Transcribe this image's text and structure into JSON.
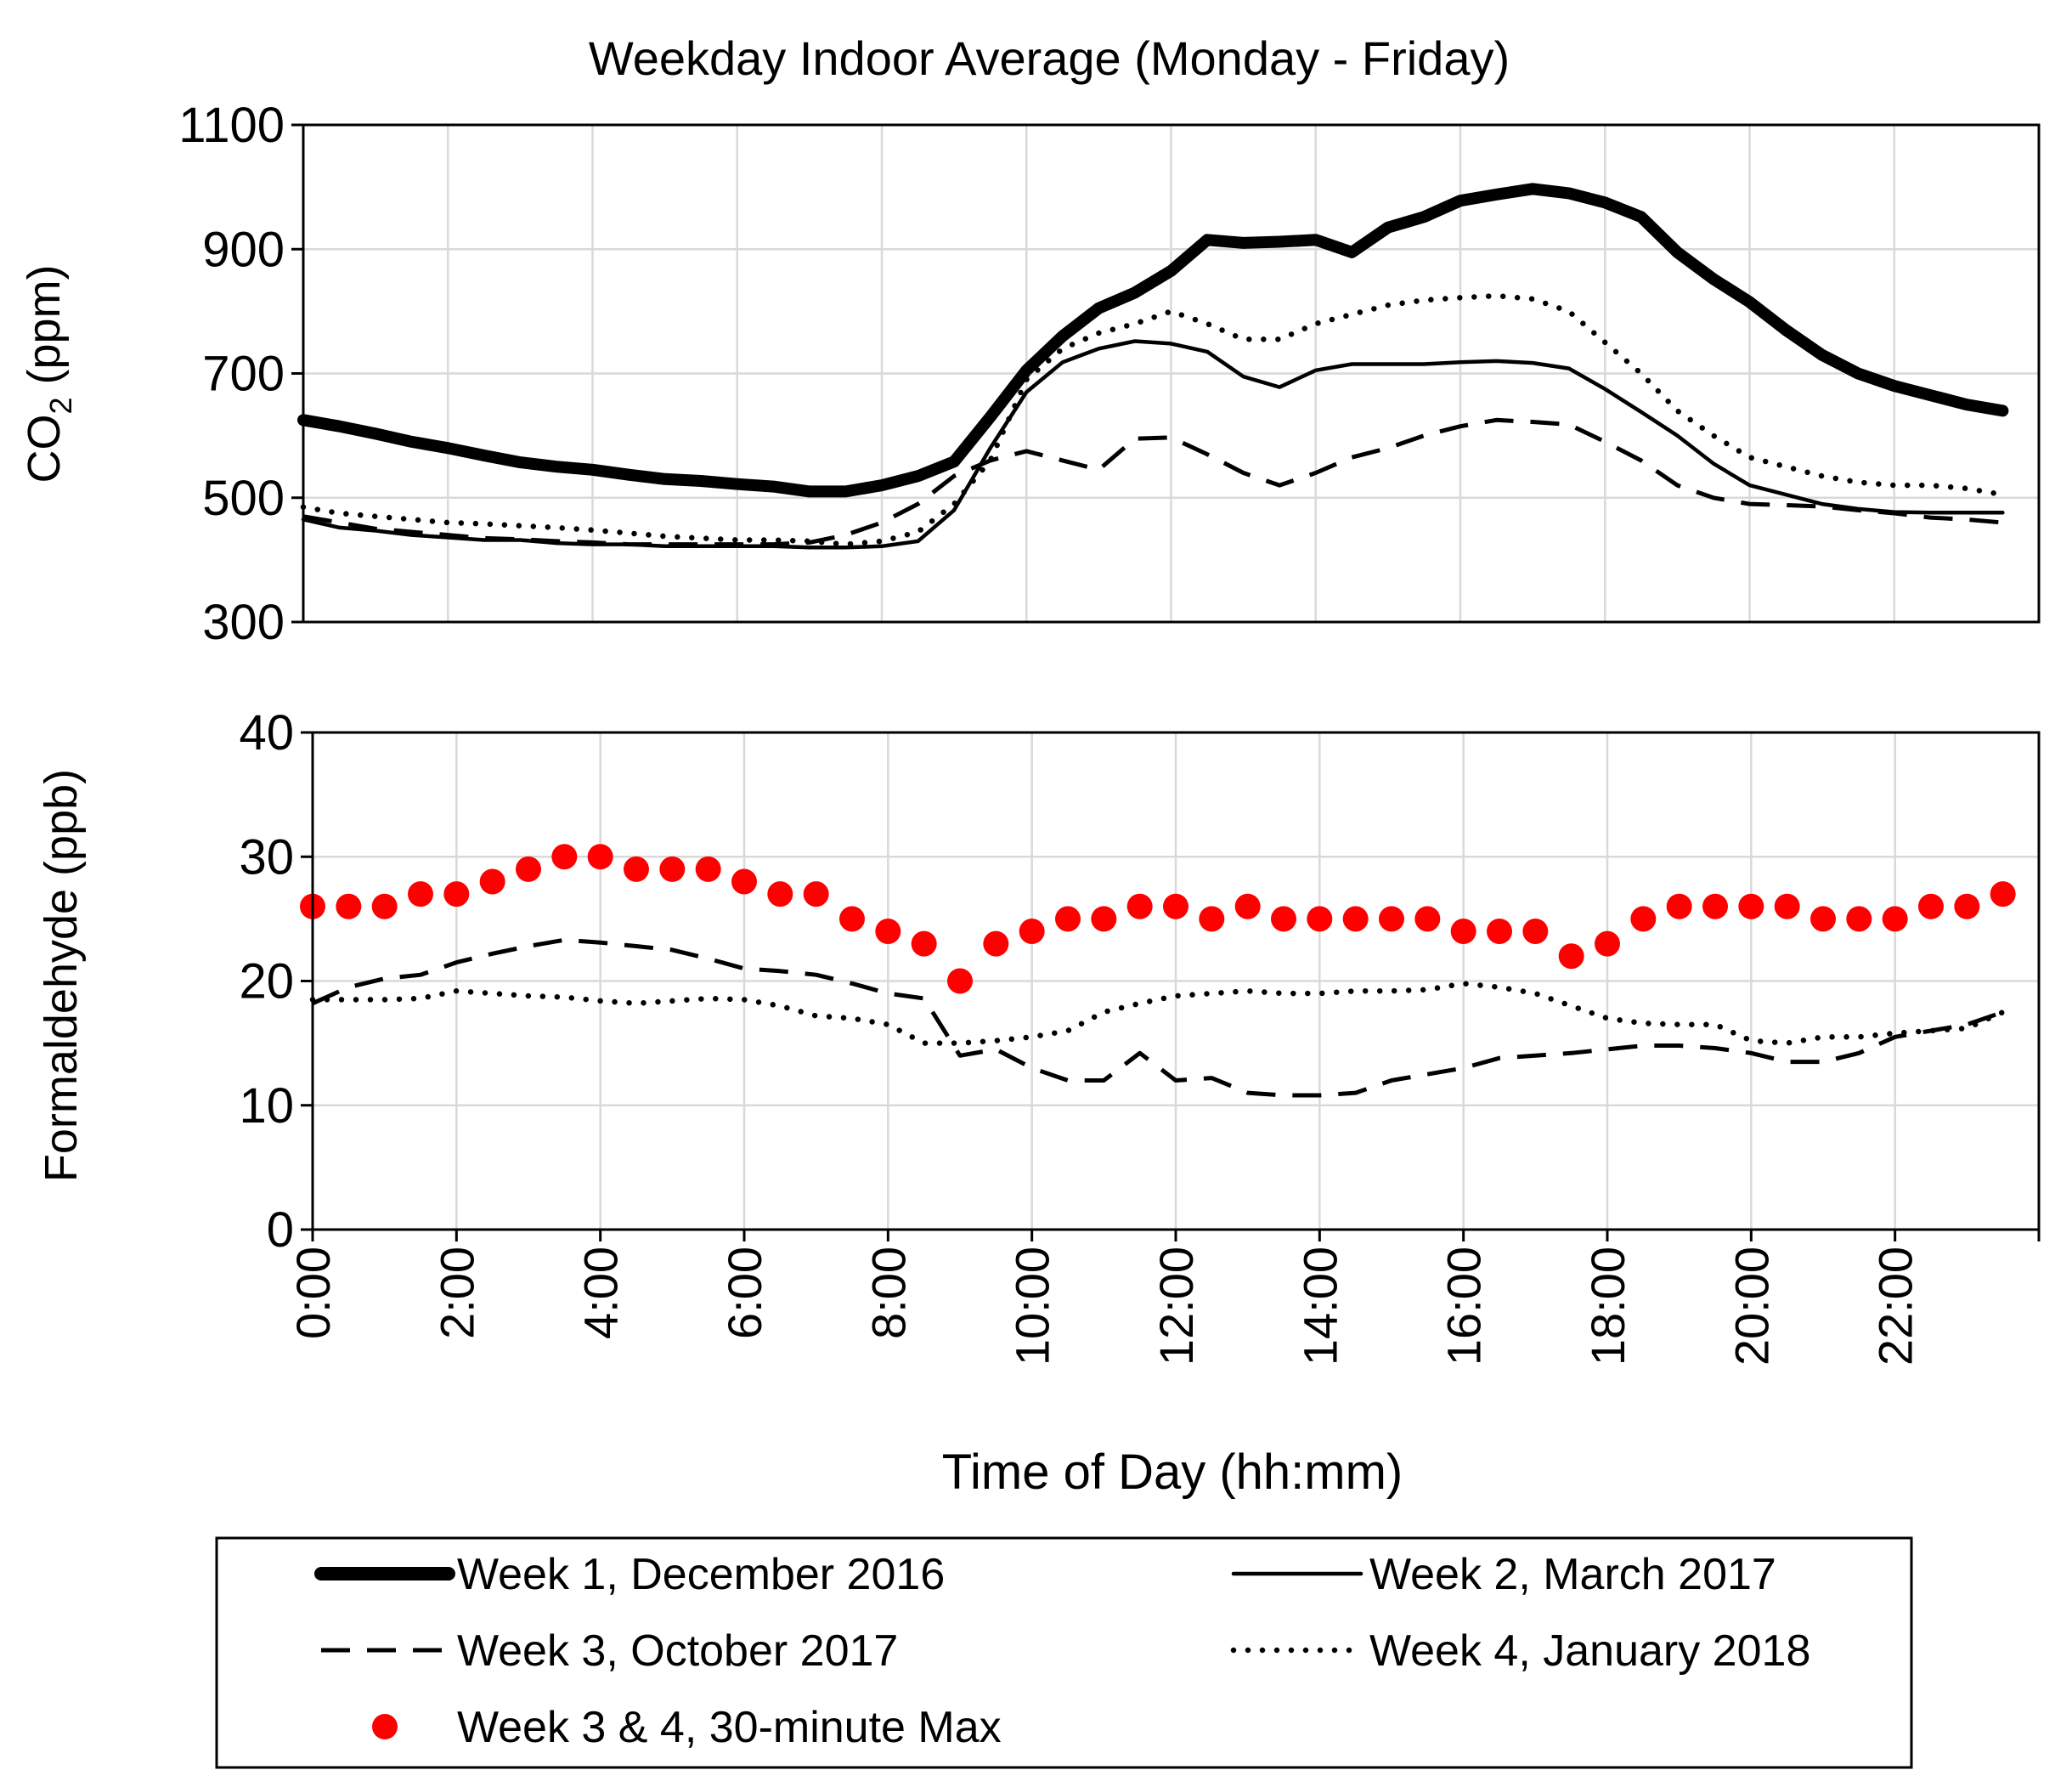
{
  "chart_data": [
    {
      "type": "line",
      "panel": "co2",
      "title": "Weekday Indoor Average (Monday - Friday)",
      "ylabel_main": "CO",
      "ylabel_sub": "2",
      "ylabel_unit": " (ppm)",
      "ylim": [
        300,
        1100
      ],
      "yticks": [
        300,
        500,
        700,
        900,
        1100
      ],
      "xlim": [
        0,
        24
      ],
      "grid": true,
      "series": [
        {
          "name": "Week 1, December 2016",
          "style": "thick",
          "x": [
            0,
            0.5,
            1,
            1.5,
            2,
            2.5,
            3,
            3.5,
            4,
            4.5,
            5,
            5.5,
            6,
            6.5,
            7,
            7.5,
            8,
            8.5,
            9,
            9.5,
            10,
            10.5,
            11,
            11.5,
            12,
            12.5,
            13,
            13.5,
            14,
            14.5,
            15,
            15.5,
            16,
            16.5,
            17,
            17.5,
            18,
            18.5,
            19,
            19.5,
            20,
            20.5,
            21,
            21.5,
            22,
            22.5,
            23,
            23.5
          ],
          "values": [
            625,
            615,
            603,
            590,
            580,
            568,
            557,
            550,
            545,
            537,
            530,
            527,
            522,
            518,
            510,
            510,
            520,
            535,
            558,
            630,
            705,
            760,
            805,
            830,
            865,
            915,
            910,
            912,
            915,
            895,
            935,
            952,
            978,
            988,
            997,
            990,
            975,
            952,
            895,
            852,
            815,
            770,
            730,
            700,
            680,
            665,
            650,
            640
          ]
        },
        {
          "name": "Week 2, March 2017",
          "style": "solid",
          "x": [
            0,
            0.5,
            1,
            1.5,
            2,
            2.5,
            3,
            3.5,
            4,
            4.5,
            5,
            5.5,
            6,
            6.5,
            7,
            7.5,
            8,
            8.5,
            9,
            9.5,
            10,
            10.5,
            11,
            11.5,
            12,
            12.5,
            13,
            13.5,
            14,
            14.5,
            15,
            15.5,
            16,
            16.5,
            17,
            17.5,
            18,
            18.5,
            19,
            19.5,
            20,
            20.5,
            21,
            21.5,
            22,
            22.5,
            23,
            23.5
          ],
          "values": [
            465,
            452,
            447,
            440,
            436,
            432,
            432,
            427,
            425,
            425,
            422,
            422,
            422,
            422,
            420,
            420,
            422,
            430,
            480,
            580,
            670,
            718,
            740,
            752,
            748,
            735,
            695,
            678,
            705,
            715,
            715,
            715,
            718,
            720,
            717,
            708,
            675,
            638,
            600,
            555,
            520,
            505,
            490,
            482,
            477,
            476,
            476,
            476
          ]
        },
        {
          "name": "Week 3, October 2017",
          "style": "dashed",
          "x": [
            0,
            0.5,
            1,
            1.5,
            2,
            2.5,
            3,
            3.5,
            4,
            4.5,
            5,
            5.5,
            6,
            6.5,
            7,
            7.5,
            8,
            8.5,
            9,
            9.5,
            10,
            10.5,
            11,
            11.5,
            12,
            12.5,
            13,
            13.5,
            14,
            14.5,
            15,
            15.5,
            16,
            16.5,
            17,
            17.5,
            18,
            18.5,
            19,
            19.5,
            20,
            20.5,
            21,
            21.5,
            22,
            22.5,
            23,
            23.5
          ],
          "values": [
            470,
            460,
            450,
            445,
            440,
            435,
            433,
            430,
            428,
            425,
            425,
            425,
            425,
            425,
            428,
            440,
            460,
            490,
            535,
            560,
            575,
            560,
            545,
            595,
            597,
            570,
            540,
            520,
            540,
            565,
            580,
            600,
            615,
            625,
            622,
            618,
            590,
            560,
            520,
            500,
            490,
            488,
            486,
            480,
            475,
            468,
            465,
            460
          ]
        },
        {
          "name": "Week 4, January 2018",
          "style": "dotted",
          "x": [
            0,
            0.5,
            1,
            1.5,
            2,
            2.5,
            3,
            3.5,
            4,
            4.5,
            5,
            5.5,
            6,
            6.5,
            7,
            7.5,
            8,
            8.5,
            9,
            9.5,
            10,
            10.5,
            11,
            11.5,
            12,
            12.5,
            13,
            13.5,
            14,
            14.5,
            15,
            15.5,
            16,
            16.5,
            17,
            17.5,
            18,
            18.5,
            19,
            19.5,
            20,
            20.5,
            21,
            21.5,
            22,
            22.5,
            23,
            23.5
          ],
          "values": [
            485,
            475,
            470,
            465,
            460,
            458,
            455,
            452,
            448,
            443,
            438,
            435,
            432,
            432,
            430,
            425,
            430,
            445,
            490,
            560,
            690,
            740,
            765,
            780,
            800,
            780,
            755,
            755,
            780,
            795,
            810,
            818,
            822,
            825,
            820,
            800,
            750,
            700,
            640,
            600,
            565,
            550,
            535,
            525,
            520,
            520,
            515,
            505
          ]
        }
      ]
    },
    {
      "type": "line",
      "panel": "formaldehyde",
      "ylabel": "Formaldehyde (ppb)",
      "xlabel": "Time of Day (hh:mm)",
      "ylim": [
        0,
        40
      ],
      "yticks": [
        0,
        10,
        20,
        30,
        40
      ],
      "xlim": [
        0,
        24
      ],
      "xticks": [
        "0:00",
        "2:00",
        "4:00",
        "6:00",
        "8:00",
        "10:00",
        "12:00",
        "14:00",
        "16:00",
        "18:00",
        "20:00",
        "22:00"
      ],
      "grid": true,
      "series": [
        {
          "name": "Week 3, October 2017",
          "style": "dashed",
          "x": [
            0,
            0.5,
            1,
            1.5,
            2,
            2.5,
            3,
            3.5,
            4,
            4.5,
            5,
            5.5,
            6,
            6.5,
            7,
            7.5,
            8,
            8.5,
            9,
            9.5,
            10,
            10.5,
            11,
            11.5,
            12,
            12.5,
            13,
            13.5,
            14,
            14.5,
            15,
            15.5,
            16,
            16.5,
            17,
            17.5,
            18,
            18.5,
            19,
            19.5,
            20,
            20.5,
            21,
            21.5,
            22,
            22.5,
            23,
            23.5
          ],
          "values": [
            18.2,
            19.5,
            20.2,
            20.5,
            21.5,
            22.2,
            22.8,
            23.3,
            23.1,
            22.8,
            22.5,
            21.8,
            21,
            20.8,
            20.5,
            19.8,
            19,
            18.6,
            14,
            14.5,
            13,
            12,
            12,
            14.2,
            12,
            12.2,
            11,
            10.8,
            10.8,
            11,
            12,
            12.5,
            13,
            13.8,
            14,
            14.2,
            14.5,
            14.8,
            14.8,
            14.6,
            14.2,
            13.5,
            13.5,
            14.2,
            15.5,
            16,
            16.5,
            17.5
          ]
        },
        {
          "name": "Week 4, January 2018",
          "style": "dotted",
          "x": [
            0,
            0.5,
            1,
            1.5,
            2,
            2.5,
            3,
            3.5,
            4,
            4.5,
            5,
            5.5,
            6,
            6.5,
            7,
            7.5,
            8,
            8.5,
            9,
            9.5,
            10,
            10.5,
            11,
            11.5,
            12,
            12.5,
            13,
            13.5,
            14,
            14.5,
            15,
            15.5,
            16,
            16.5,
            17,
            17.5,
            18,
            18.5,
            19,
            19.5,
            20,
            20.5,
            21,
            21.5,
            22,
            22.5,
            23,
            23.5
          ],
          "values": [
            18.5,
            18.5,
            18.5,
            18.6,
            19.2,
            19,
            18.8,
            18.7,
            18.4,
            18.2,
            18.4,
            18.6,
            18.5,
            18,
            17.2,
            17,
            16.5,
            15,
            15,
            15.2,
            15.5,
            16,
            17.5,
            18.2,
            18.8,
            19,
            19.2,
            19,
            19,
            19.2,
            19.2,
            19.3,
            19.8,
            19.5,
            19,
            18,
            17,
            16.6,
            16.5,
            16.5,
            15.2,
            15,
            15.5,
            15.5,
            15.8,
            16,
            16.2,
            17.5
          ]
        },
        {
          "name": "Week 3 & 4, 30-minute Max",
          "style": "markers",
          "x": [
            0,
            0.5,
            1,
            1.5,
            2,
            2.5,
            3,
            3.5,
            4,
            4.5,
            5,
            5.5,
            6,
            6.5,
            7,
            7.5,
            8,
            8.5,
            9,
            9.5,
            10,
            10.5,
            11,
            11.5,
            12,
            12.5,
            13,
            13.5,
            14,
            14.5,
            15,
            15.5,
            16,
            16.5,
            17,
            17.5,
            18,
            18.5,
            19,
            19.5,
            20,
            20.5,
            21,
            21.5,
            22,
            22.5,
            23,
            23.5
          ],
          "values": [
            26,
            26,
            26,
            27,
            27,
            28,
            29,
            30,
            30,
            29,
            29,
            29,
            28,
            27,
            27,
            25,
            24,
            23,
            20,
            23,
            24,
            25,
            25,
            26,
            26,
            25,
            26,
            25,
            25,
            25,
            25,
            25,
            24,
            24,
            24,
            22,
            23,
            25,
            26,
            26,
            26,
            26,
            25,
            25,
            25,
            26,
            26,
            27
          ]
        }
      ]
    }
  ],
  "legend": {
    "position": "bottom",
    "entries": [
      {
        "label": "Week 1, December 2016",
        "style": "thick"
      },
      {
        "label": "Week 2, March 2017",
        "style": "solid"
      },
      {
        "label": "Week 3, October 2017",
        "style": "dashed"
      },
      {
        "label": "Week 4, January 2018",
        "style": "dotted"
      },
      {
        "label": "Week 3 & 4, 30-minute Max",
        "style": "markers"
      }
    ]
  },
  "colors": {
    "line": "#000000",
    "marker": "#ff0000",
    "grid": "#d9d9d9"
  }
}
